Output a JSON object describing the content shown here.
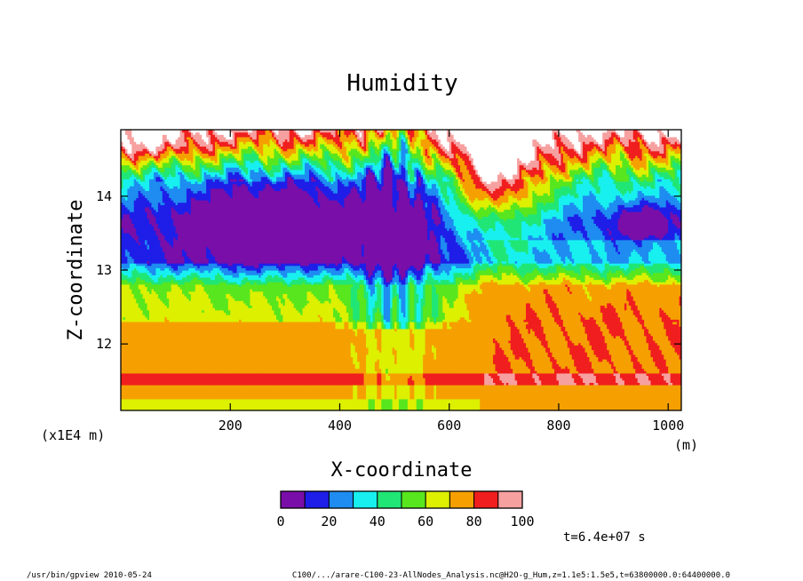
{
  "chart_data": {
    "type": "heatmap",
    "title": "Humidity",
    "xlabel": "X-coordinate",
    "ylabel": "Z-coordinate",
    "xunit": "(m)",
    "yunit": "(x1E4 m)",
    "xlim": [
      0,
      1024
    ],
    "ylim": [
      11.1,
      14.9
    ],
    "xticks": [
      200,
      400,
      600,
      800,
      1000
    ],
    "yticks": [
      12,
      13,
      14
    ],
    "colorbar": {
      "levels": [
        0,
        10,
        20,
        30,
        40,
        50,
        60,
        70,
        80,
        90,
        100
      ],
      "labels": [
        "0",
        "20",
        "40",
        "60",
        "80",
        "100"
      ],
      "colors": [
        "#7a0ea8",
        "#1e1ee8",
        "#1e8cf0",
        "#18f0f0",
        "#20e676",
        "#58e61e",
        "#dcf000",
        "#f5a000",
        "#f01e1e",
        "#f7a0a0"
      ]
    },
    "time_label": "t=6.4e+07 s",
    "layers": [
      {
        "z_range": [
          11.1,
          11.25
        ],
        "band": "60-70"
      },
      {
        "z_range": [
          11.25,
          11.45
        ],
        "band": "70-80"
      },
      {
        "z_range": [
          11.45,
          11.6
        ],
        "band": "80-90"
      },
      {
        "z_range": [
          11.6,
          12.3
        ],
        "band": "70-80"
      },
      {
        "z_range": [
          12.3,
          12.8
        ],
        "band": "60-70"
      },
      {
        "z_range": [
          12.8,
          13.1
        ],
        "band": "40-60"
      },
      {
        "z_range": [
          13.1,
          13.6
        ],
        "band": "10-20"
      },
      {
        "z_range": [
          13.6,
          14.2
        ],
        "band": "10-30"
      },
      {
        "z_range": [
          14.2,
          14.9
        ],
        "band": "30-100"
      }
    ]
  },
  "footer": {
    "left": "/usr/bin/gpview   2010-05-24",
    "right": "C100/.../arare-C100-23-AllNodes_Analysis.nc@H2O-g_Hum,z=1.1e5:1.5e5,t=63800000.0:64400000.0"
  }
}
